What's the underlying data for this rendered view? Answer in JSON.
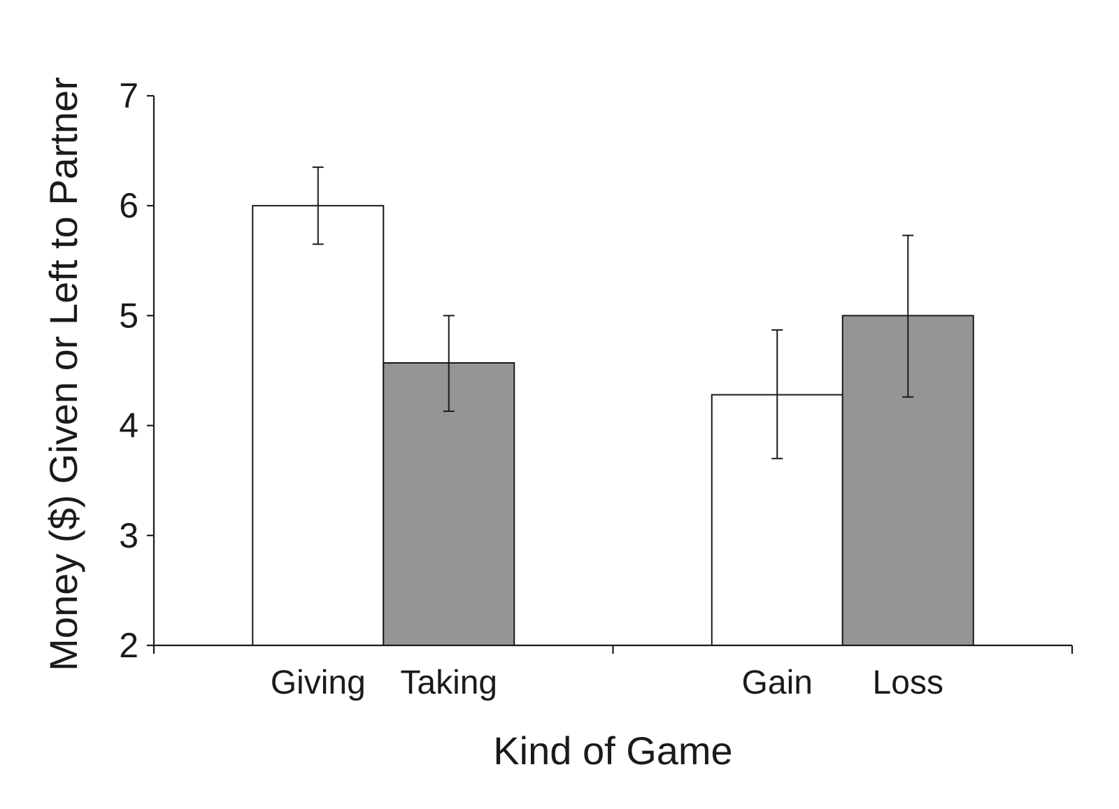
{
  "chart_data": {
    "type": "bar",
    "xlabel": "Kind of Game",
    "ylabel": "Money ($) Given or Left to Partner",
    "ylim": [
      2,
      7
    ],
    "yticks": [
      "2",
      "3",
      "4",
      "5",
      "6",
      "7"
    ],
    "grid": false,
    "legend": "none",
    "groups": [
      {
        "bars": [
          {
            "label": "Giving",
            "value": 6.0,
            "err_low": 5.65,
            "err_high": 6.35,
            "color": "#ffffff"
          },
          {
            "label": "Taking",
            "value": 4.57,
            "err_low": 4.13,
            "err_high": 5.0,
            "color": "#959596"
          }
        ]
      },
      {
        "bars": [
          {
            "label": "Gain",
            "value": 4.28,
            "err_low": 3.7,
            "err_high": 4.87,
            "color": "#ffffff"
          },
          {
            "label": "Loss",
            "value": 5.0,
            "err_low": 4.26,
            "err_high": 5.73,
            "color": "#959596"
          }
        ]
      }
    ]
  }
}
